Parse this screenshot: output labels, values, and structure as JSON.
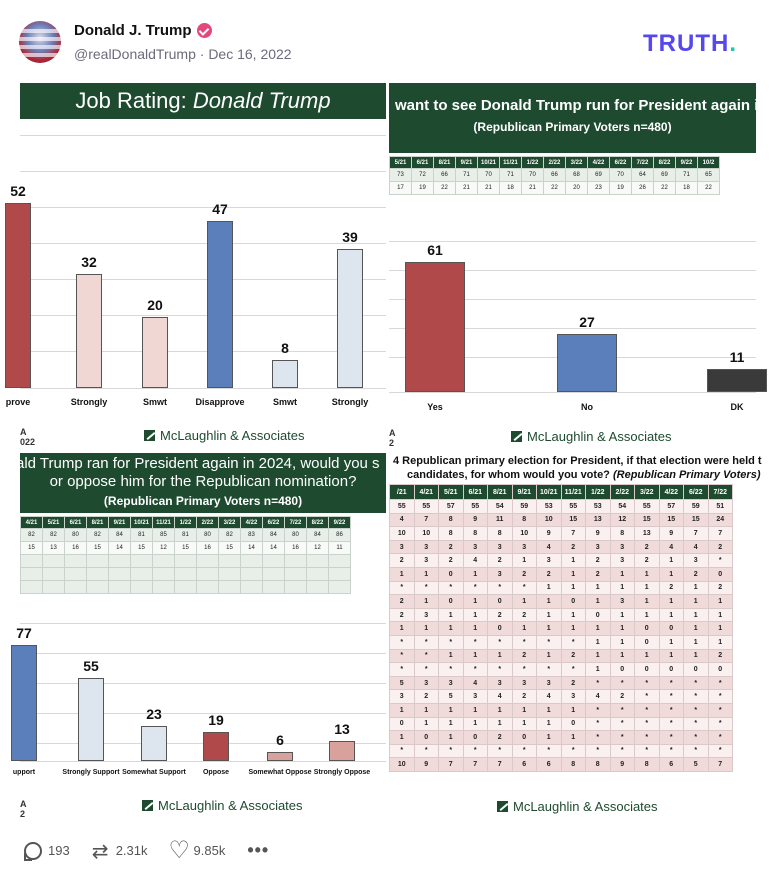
{
  "post": {
    "author_name": "Donald J. Trump",
    "handle": "@realDonaldTrump",
    "separator": "·",
    "date": "Dec 16, 2022",
    "platform_logo": "TRUTH",
    "platform_logo_dot": ".",
    "verified_icon": "verified-badge-icon"
  },
  "colors": {
    "banner_green": "#1e4a2f",
    "bar_red": "#b04a4a",
    "bar_pink": "#f1d7d3",
    "bar_blue": "#5b7fba",
    "bar_lightblue": "#dde5ef",
    "bar_dark": "#3a3a3a",
    "logo_purple": "#5448ee",
    "logo_teal": "#1fc9a8"
  },
  "panels": {
    "job_rating": {
      "title_prefix": "Job Rating: ",
      "title_name": "Donald Trump",
      "brand": "McLaughlin & Associates",
      "note_top": "A",
      "note_bottom": "022"
    },
    "run_again": {
      "title_line1": "want to see Donald Trump run for President again i",
      "title_line2": "(Republican Primary Voters n=480)",
      "brand": "McLaughlin & Associates",
      "note_top": "A",
      "note_bottom": "2",
      "trend_header": [
        "5/21",
        "6/21",
        "8/21",
        "9/21",
        "10/21",
        "11/21",
        "1/22",
        "2/22",
        "3/22",
        "4/22",
        "6/22",
        "7/22",
        "8/22",
        "9/22",
        "10/2"
      ],
      "trend_rows": [
        [
          "73",
          "72",
          "66",
          "71",
          "70",
          "71",
          "70",
          "66",
          "68",
          "69",
          "70",
          "64",
          "69",
          "71",
          "65"
        ],
        [
          "17",
          "19",
          "22",
          "21",
          "21",
          "18",
          "21",
          "22",
          "20",
          "23",
          "19",
          "26",
          "22",
          "18",
          "22"
        ]
      ]
    },
    "nomination": {
      "title_line1": "ald Trump ran for President again in 2024, would you s",
      "title_line2": "or oppose him for the Republican nomination?",
      "title_line3": "(Republican Primary Voters n=480)",
      "brand": "McLaughlin & Associates",
      "note_top": "A",
      "note_bottom": "2",
      "trend_header": [
        "4/21",
        "5/21",
        "6/21",
        "8/21",
        "9/21",
        "10/21",
        "11/21",
        "1/22",
        "2/22",
        "3/22",
        "4/22",
        "6/22",
        "7/22",
        "8/22",
        "9/22"
      ],
      "trend_rows": [
        [
          "82",
          "82",
          "80",
          "82",
          "84",
          "81",
          "85",
          "81",
          "80",
          "82",
          "83",
          "84",
          "80",
          "84",
          "86"
        ],
        [
          "15",
          "13",
          "16",
          "15",
          "14",
          "15",
          "12",
          "15",
          "16",
          "15",
          "14",
          "14",
          "16",
          "12",
          "11"
        ]
      ]
    },
    "primary": {
      "title_line1": "4 Republican primary election for President, if that election were held t",
      "title_line2_a": "candidates, for whom would you vote? ",
      "title_line2_b": "(Republican Primary Voters)",
      "brand": "McLaughlin & Associates",
      "header": [
        "/21",
        "4/21",
        "5/21",
        "6/21",
        "8/21",
        "9/21",
        "10/21",
        "11/21",
        "1/22",
        "2/22",
        "3/22",
        "4/22",
        "6/22",
        "7/22"
      ],
      "rows": [
        [
          "55",
          "55",
          "57",
          "55",
          "54",
          "59",
          "53",
          "55",
          "53",
          "54",
          "55",
          "57",
          "59",
          "51"
        ],
        [
          "4",
          "7",
          "8",
          "9",
          "11",
          "8",
          "10",
          "15",
          "13",
          "12",
          "15",
          "15",
          "15",
          "24"
        ],
        [
          "10",
          "10",
          "8",
          "8",
          "8",
          "10",
          "9",
          "7",
          "9",
          "8",
          "13",
          "9",
          "7",
          "7"
        ],
        [
          "3",
          "3",
          "2",
          "3",
          "3",
          "3",
          "4",
          "2",
          "3",
          "3",
          "2",
          "4",
          "4",
          "2"
        ],
        [
          "2",
          "3",
          "2",
          "4",
          "2",
          "1",
          "3",
          "1",
          "2",
          "3",
          "2",
          "1",
          "3",
          "*"
        ],
        [
          "1",
          "1",
          "0",
          "1",
          "3",
          "2",
          "2",
          "1",
          "2",
          "1",
          "1",
          "1",
          "2",
          "0"
        ],
        [
          "*",
          "*",
          "*",
          "*",
          "*",
          "*",
          "1",
          "1",
          "1",
          "1",
          "1",
          "2",
          "1",
          "2"
        ],
        [
          "2",
          "1",
          "0",
          "1",
          "0",
          "1",
          "1",
          "0",
          "1",
          "3",
          "1",
          "1",
          "1",
          "1"
        ],
        [
          "2",
          "3",
          "1",
          "1",
          "2",
          "2",
          "1",
          "1",
          "0",
          "1",
          "1",
          "1",
          "1",
          "1"
        ],
        [
          "1",
          "1",
          "1",
          "1",
          "0",
          "1",
          "1",
          "1",
          "1",
          "1",
          "0",
          "0",
          "1",
          "1"
        ],
        [
          "*",
          "*",
          "*",
          "*",
          "*",
          "*",
          "*",
          "*",
          "1",
          "1",
          "0",
          "1",
          "1",
          "1"
        ],
        [
          "*",
          "*",
          "1",
          "1",
          "1",
          "2",
          "1",
          "2",
          "1",
          "1",
          "1",
          "1",
          "1",
          "2"
        ],
        [
          "*",
          "*",
          "*",
          "*",
          "*",
          "*",
          "*",
          "*",
          "1",
          "0",
          "0",
          "0",
          "0",
          "0"
        ],
        [
          "5",
          "3",
          "3",
          "4",
          "3",
          "3",
          "3",
          "2",
          "*",
          "*",
          "*",
          "*",
          "*",
          "*"
        ],
        [
          "3",
          "2",
          "5",
          "3",
          "4",
          "2",
          "4",
          "3",
          "4",
          "2",
          "*",
          "*",
          "*",
          "*"
        ],
        [
          "1",
          "1",
          "1",
          "1",
          "1",
          "1",
          "1",
          "1",
          "*",
          "*",
          "*",
          "*",
          "*",
          "*"
        ],
        [
          "0",
          "1",
          "1",
          "1",
          "1",
          "1",
          "1",
          "0",
          "*",
          "*",
          "*",
          "*",
          "*",
          "*"
        ],
        [
          "1",
          "0",
          "1",
          "0",
          "2",
          "0",
          "1",
          "1",
          "*",
          "*",
          "*",
          "*",
          "*",
          "*"
        ],
        [
          "*",
          "*",
          "*",
          "*",
          "*",
          "*",
          "*",
          "*",
          "*",
          "*",
          "*",
          "*",
          "*",
          "*"
        ],
        [
          "10",
          "9",
          "7",
          "7",
          "7",
          "6",
          "6",
          "8",
          "8",
          "9",
          "8",
          "6",
          "5",
          "7"
        ]
      ]
    }
  },
  "chart_data": [
    {
      "type": "bar",
      "title": "Job Rating: Donald Trump",
      "categories": [
        "prove",
        "Strongly",
        "Smwt",
        "Disapprove",
        "Smwt",
        "Strongly"
      ],
      "values": [
        52,
        32,
        20,
        47,
        8,
        39
      ],
      "value_labels": [
        "52",
        "32",
        "20",
        "47",
        "8",
        "39"
      ],
      "colors": [
        "#b04a4a",
        "#f1d7d3",
        "#f1d7d3",
        "#5b7fba",
        "#dde5ef",
        "#dde5ef"
      ],
      "ylim": [
        0,
        60
      ]
    },
    {
      "type": "bar",
      "title": "want to see Donald Trump run for President again i",
      "categories": [
        "Yes",
        "No",
        "DK"
      ],
      "values": [
        61,
        27,
        11
      ],
      "value_labels": [
        "61",
        "27",
        "11"
      ],
      "colors": [
        "#b04a4a",
        "#5b7fba",
        "#3a3a3a"
      ],
      "ylim": [
        0,
        75
      ]
    },
    {
      "type": "bar",
      "title": "ald Trump ran for President again in 2024, would you s or oppose him for the Republican nomination?",
      "categories": [
        "upport",
        "Strongly Support",
        "Somewhat Support",
        "Oppose",
        "Somewhat Oppose",
        "Strongly Oppose"
      ],
      "values": [
        77,
        55,
        23,
        19,
        6,
        13
      ],
      "value_labels": [
        "77",
        "55",
        "23",
        "19",
        "6",
        "13"
      ],
      "colors": [
        "#5b7fba",
        "#dde5ef",
        "#dde5ef",
        "#b04a4a",
        "#d9a19c",
        "#d9a19c"
      ],
      "ylim": [
        0,
        90
      ]
    }
  ],
  "actions": {
    "comments": "193",
    "retruths": "2.31k",
    "likes": "9.85k",
    "more": "•••"
  }
}
